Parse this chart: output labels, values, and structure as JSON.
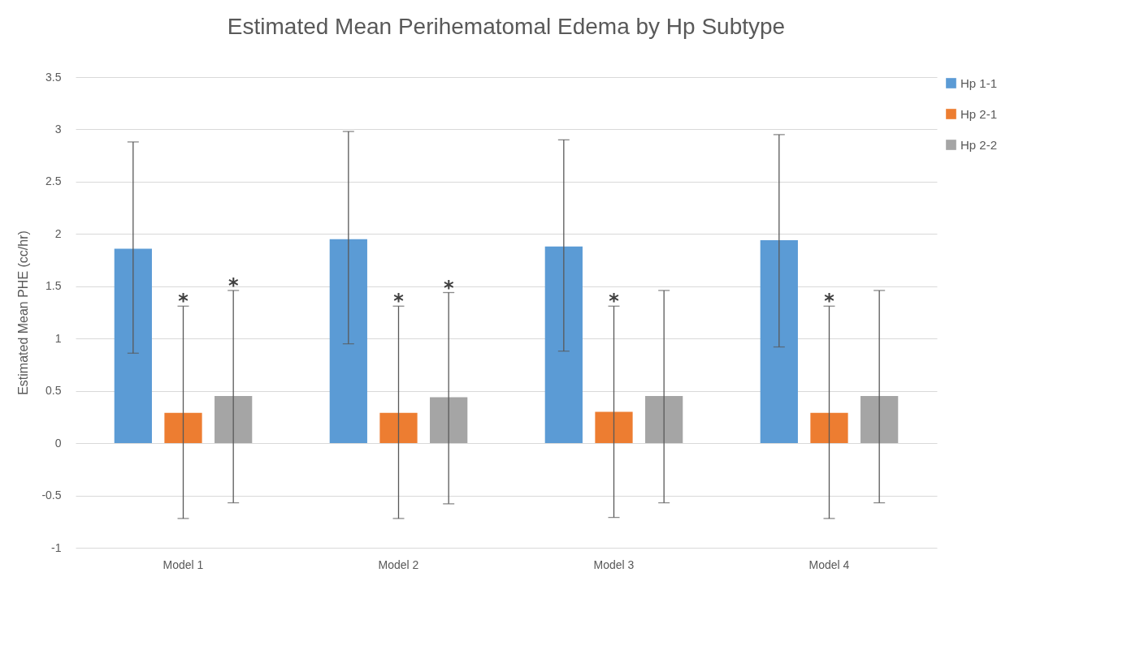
{
  "chart_data": {
    "type": "bar",
    "title": "Estimated Mean Perihematomal Edema by Hp Subtype",
    "ylabel": "Estimated Mean PHE (cc/hr)",
    "categories": [
      "Model 1",
      "Model 2",
      "Model 3",
      "Model 4"
    ],
    "series": [
      {
        "name": "Hp 1-1",
        "color": "#5b9bd5",
        "values": [
          1.86,
          1.95,
          1.88,
          1.94
        ],
        "errors": [
          [
            0.86,
            2.88
          ],
          [
            0.95,
            2.98
          ],
          [
            0.88,
            2.9
          ],
          [
            0.92,
            2.95
          ]
        ]
      },
      {
        "name": "Hp 2-1",
        "color": "#ed7d31",
        "values": [
          0.29,
          0.29,
          0.3,
          0.29
        ],
        "errors": [
          [
            -0.72,
            1.31
          ],
          [
            -0.72,
            1.31
          ],
          [
            -0.71,
            1.31
          ],
          [
            -0.72,
            1.31
          ]
        ]
      },
      {
        "name": "Hp 2-2",
        "color": "#a5a5a5",
        "values": [
          0.45,
          0.44,
          0.45,
          0.45
        ],
        "errors": [
          [
            -0.57,
            1.46
          ],
          [
            -0.58,
            1.44
          ],
          [
            -0.57,
            1.46
          ],
          [
            -0.57,
            1.46
          ]
        ]
      }
    ],
    "annotations": [
      {
        "text": "*",
        "x": "Model 1",
        "y": 1.31
      },
      "*",
      {
        "text": "*",
        "x": "Model 2",
        "y": 1.31
      },
      "*",
      {
        "text": "*",
        "x": "Model 3",
        "y": 1.31
      },
      {
        "text": "*",
        "x": "Model 4",
        "y": 1.31
      }
    ],
    "ylim": [
      -1,
      3.5
    ],
    "yticks": [
      -1,
      -0.5,
      0,
      0.5,
      1,
      1.5,
      2,
      2.5,
      3,
      3.5
    ],
    "grid": "y",
    "legend": "right"
  }
}
